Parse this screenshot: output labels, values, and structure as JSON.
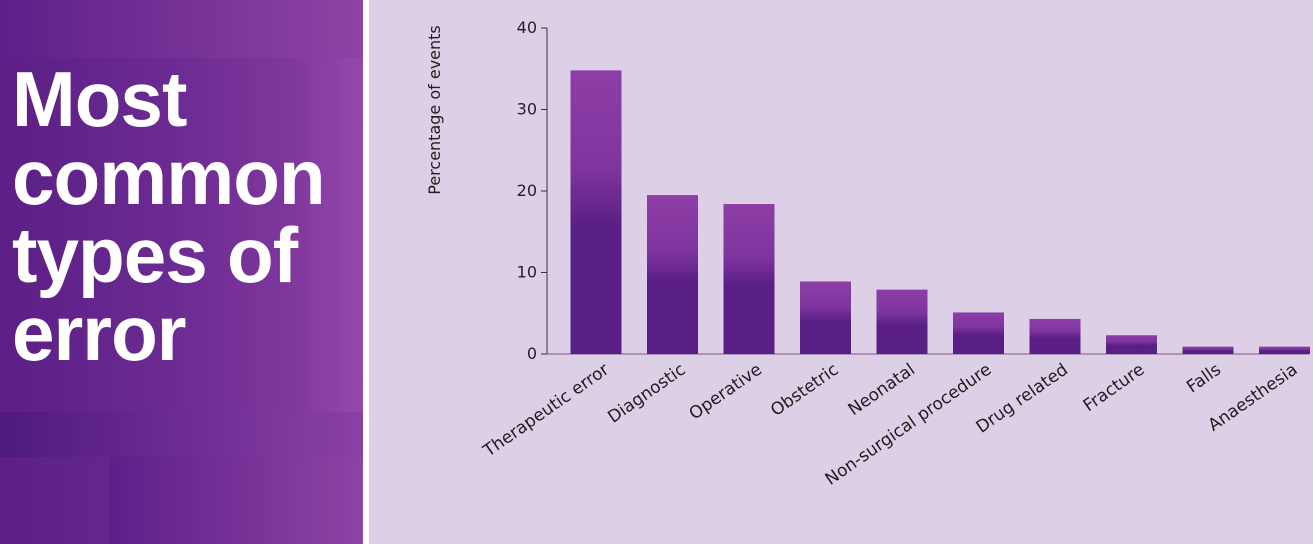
{
  "panel": {
    "title_lines": [
      "Most",
      "common",
      "types of",
      "error"
    ]
  },
  "colors": {
    "bar_dark": "#5a1f84",
    "bar_light": "#8e3ea6",
    "chart_background": "#ddd0e6",
    "panel_dark": "#5b1f86",
    "panel_light": "#8a3ea2"
  },
  "chart_data": {
    "type": "bar",
    "categories": [
      "Therapeutic error",
      "Diagnostic",
      "Operative",
      "Obstetric",
      "Neonatal",
      "Non-surgical procedure",
      "Drug related",
      "Fracture",
      "Falls",
      "Anaesthesia"
    ],
    "values": [
      34.8,
      19.5,
      18.4,
      8.9,
      7.9,
      5.1,
      4.3,
      2.3,
      0.9,
      0.9
    ],
    "ylabel": "Percentage of events",
    "xlabel": "",
    "ylim": [
      0,
      40
    ],
    "yticks": [
      0,
      10,
      20,
      30,
      40
    ],
    "grid": false,
    "legend": "none"
  }
}
